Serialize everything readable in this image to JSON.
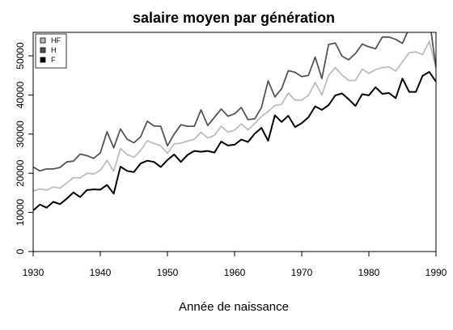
{
  "chart_data": {
    "type": "line",
    "title": "salaire moyen par génération",
    "xlabel": "Année de naissance",
    "ylabel": "",
    "xlim": [
      1930,
      1990
    ],
    "ylim": [
      0,
      56000
    ],
    "x_ticks": [
      1930,
      1940,
      1950,
      1960,
      1970,
      1980,
      1990
    ],
    "y_ticks": [
      0,
      10000,
      20000,
      30000,
      40000,
      50000
    ],
    "grid": false,
    "legend_position": "top-left",
    "x": [
      1930,
      1931,
      1932,
      1933,
      1934,
      1935,
      1936,
      1937,
      1938,
      1939,
      1940,
      1941,
      1942,
      1943,
      1944,
      1945,
      1946,
      1947,
      1948,
      1949,
      1950,
      1951,
      1952,
      1953,
      1954,
      1955,
      1956,
      1957,
      1958,
      1959,
      1960,
      1961,
      1962,
      1963,
      1964,
      1965,
      1966,
      1967,
      1968,
      1969,
      1970,
      1971,
      1972,
      1973,
      1974,
      1975,
      1976,
      1977,
      1978,
      1979,
      1980,
      1981,
      1982,
      1983,
      1984,
      1985,
      1986,
      1987,
      1988,
      1989,
      1990
    ],
    "series": [
      {
        "name": "HF",
        "color": "#bdbdbd",
        "values": [
          15500,
          16000,
          15700,
          16500,
          16200,
          17500,
          18900,
          18800,
          20000,
          19800,
          20700,
          23300,
          20500,
          26300,
          24800,
          24100,
          25800,
          28300,
          27600,
          27000,
          25100,
          27500,
          27700,
          28200,
          28700,
          30500,
          29000,
          29700,
          32000,
          30500,
          31000,
          32600,
          31100,
          32700,
          34500,
          35800,
          37300,
          37600,
          40500,
          38700,
          38700,
          39900,
          43200,
          40000,
          45000,
          47000,
          45100,
          43700,
          43700,
          46600,
          45500,
          46500,
          47000,
          47200,
          46100,
          48500,
          50800,
          51000,
          50300,
          53700,
          47000
        ]
      },
      {
        "name": "H",
        "color": "#555555",
        "values": [
          21600,
          20600,
          21100,
          21100,
          21500,
          22900,
          23100,
          24900,
          24500,
          23800,
          25200,
          30600,
          26500,
          31300,
          28700,
          27800,
          29300,
          33300,
          32100,
          32000,
          27000,
          30000,
          32400,
          32000,
          32000,
          36200,
          32200,
          34300,
          36400,
          34600,
          35200,
          36800,
          33700,
          33900,
          36800,
          43600,
          39500,
          41600,
          46200,
          45800,
          44700,
          45000,
          49700,
          44200,
          52900,
          53300,
          49900,
          49000,
          50600,
          53000,
          52300,
          51800,
          54800,
          54800,
          54200,
          53200,
          57000,
          59500,
          57000,
          59500,
          47000
        ]
      },
      {
        "name": "F",
        "color": "#000000",
        "values": [
          10500,
          12000,
          11200,
          12700,
          12100,
          13500,
          15100,
          13900,
          15700,
          15900,
          15800,
          17000,
          14800,
          21700,
          20600,
          20300,
          22500,
          23200,
          22900,
          21600,
          23400,
          24800,
          22900,
          24700,
          25700,
          25500,
          25700,
          25300,
          28100,
          27100,
          27300,
          28600,
          28000,
          30100,
          31600,
          28300,
          34800,
          33100,
          34700,
          31800,
          32800,
          34300,
          37100,
          36200,
          37400,
          39900,
          40400,
          38900,
          37200,
          40200,
          39900,
          42000,
          40300,
          40500,
          39200,
          44200,
          40800,
          40800,
          44900,
          45900,
          43400
        ]
      }
    ]
  }
}
